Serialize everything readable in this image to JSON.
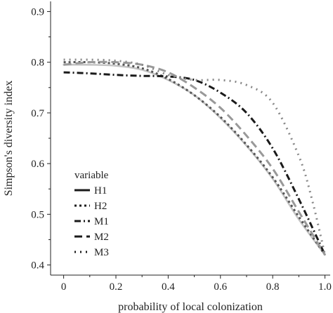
{
  "chart_data": {
    "type": "line",
    "title": "",
    "xlabel": "probability of local colonization",
    "ylabel": "Simpson's diversity index",
    "xlim": [
      -0.05,
      1.02
    ],
    "ylim": [
      0.38,
      0.92
    ],
    "xticks": [
      0,
      0.2,
      0.4,
      0.6,
      0.8,
      1.0
    ],
    "xtick_labels": [
      "0",
      "0.2",
      "0.4",
      "0.6",
      "0.8",
      "1.0"
    ],
    "yticks": [
      0.4,
      0.5,
      0.6,
      0.7,
      0.8,
      0.9
    ],
    "ytick_labels": [
      "0.4",
      "0.5",
      "0.6",
      "0.7",
      "0.8",
      "0.9"
    ],
    "grid": false,
    "legend_title": "variable",
    "legend_position": "bottom-left",
    "series": [
      {
        "name": "H1",
        "color": "#c4c4c4",
        "style": "solid",
        "x": [
          0,
          0.1,
          0.2,
          0.3,
          0.4,
          0.5,
          0.6,
          0.7,
          0.8,
          0.9,
          1.0
        ],
        "y": [
          0.795,
          0.795,
          0.793,
          0.785,
          0.765,
          0.735,
          0.69,
          0.635,
          0.57,
          0.49,
          0.42
        ]
      },
      {
        "name": "H2",
        "color": "#555555",
        "style": "dotted",
        "x": [
          0,
          0.1,
          0.2,
          0.3,
          0.4,
          0.5,
          0.6,
          0.7,
          0.8,
          0.9,
          1.0
        ],
        "y": [
          0.8,
          0.8,
          0.797,
          0.788,
          0.767,
          0.735,
          0.692,
          0.637,
          0.573,
          0.495,
          0.42
        ]
      },
      {
        "name": "M1",
        "color": "#1a1a1a",
        "style": "dashdot",
        "x": [
          0,
          0.1,
          0.2,
          0.3,
          0.4,
          0.5,
          0.6,
          0.7,
          0.8,
          0.9,
          1.0
        ],
        "y": [
          0.78,
          0.778,
          0.775,
          0.773,
          0.772,
          0.765,
          0.74,
          0.7,
          0.63,
          0.53,
          0.42
        ]
      },
      {
        "name": "M2",
        "color": "#999999",
        "style": "dashed",
        "x": [
          0,
          0.1,
          0.2,
          0.3,
          0.4,
          0.5,
          0.6,
          0.7,
          0.8,
          0.9,
          1.0
        ],
        "y": [
          0.795,
          0.8,
          0.8,
          0.795,
          0.78,
          0.75,
          0.71,
          0.655,
          0.59,
          0.505,
          0.42
        ]
      },
      {
        "name": "M3",
        "color": "#888888",
        "style": "sparse-dotted",
        "x": [
          0,
          0.1,
          0.2,
          0.3,
          0.4,
          0.5,
          0.6,
          0.7,
          0.8,
          0.9,
          0.95,
          1.0
        ],
        "y": [
          0.805,
          0.805,
          0.803,
          0.795,
          0.775,
          0.765,
          0.765,
          0.755,
          0.72,
          0.615,
          0.53,
          0.42
        ]
      }
    ]
  }
}
